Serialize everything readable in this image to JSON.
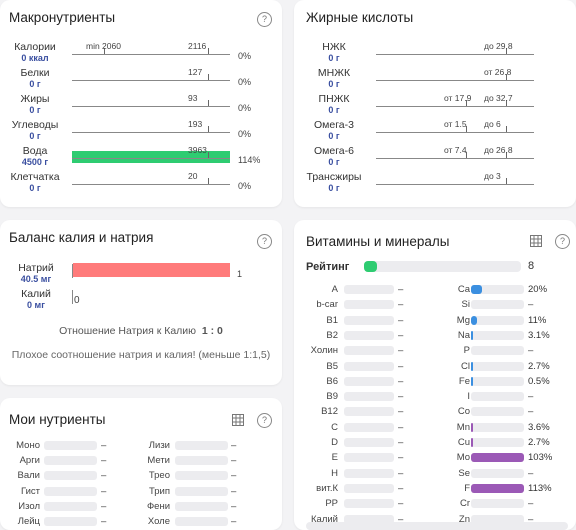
{
  "macro": {
    "title": "Макронутриенты",
    "min_label": "min 2060",
    "rows": [
      {
        "name": "Калории",
        "amount": "0 ккал",
        "target": "2116",
        "pct": "0%",
        "fill": 0
      },
      {
        "name": "Белки",
        "amount": "0 г",
        "target": "127",
        "pct": "0%",
        "fill": 0
      },
      {
        "name": "Жиры",
        "amount": "0 г",
        "target": "93",
        "pct": "0%",
        "fill": 0
      },
      {
        "name": "Углеводы",
        "amount": "0 г",
        "target": "193",
        "pct": "0%",
        "fill": 0
      },
      {
        "name": "Вода",
        "amount": "4500 г",
        "target": "3963",
        "pct": "114%",
        "fill": 1.14
      },
      {
        "name": "Клетчатка",
        "amount": "0 г",
        "target": "20",
        "pct": "0%",
        "fill": 0
      }
    ],
    "fill_color": "#2ecc71"
  },
  "fat": {
    "title": "Жирные кислоты",
    "rows": [
      {
        "name": "НЖК",
        "amount": "0 г",
        "from": "",
        "to": "до 29.8"
      },
      {
        "name": "МНЖК",
        "amount": "0 г",
        "from": "",
        "to": "от 26.8"
      },
      {
        "name": "ПНЖК",
        "amount": "0 г",
        "from": "от 17.9",
        "to": "до 32.7"
      },
      {
        "name": "Омега-3",
        "amount": "0 г",
        "from": "от 1.5",
        "to": "до 6"
      },
      {
        "name": "Омега-6",
        "amount": "0 г",
        "from": "от 7.4",
        "to": "до 26.8"
      },
      {
        "name": "Трансжиры",
        "amount": "0 г",
        "from": "",
        "to": "до 3"
      }
    ]
  },
  "balance": {
    "title": "Баланс калия и натрия",
    "rows": [
      {
        "name": "Натрий",
        "amount": "40.5 мг",
        "value": "1",
        "fill": 1
      },
      {
        "name": "Калий",
        "amount": "0 мг",
        "value": "0",
        "fill": 0
      }
    ],
    "fill_color": "#ff7b7b",
    "ratio_label": "Отношение Натрия к Калию",
    "ratio_value": "1 : 0",
    "warning": "Плохое соотношение натрия и калия! (меньше 1:1,5)"
  },
  "vitamins": {
    "title": "Витамины и минералы",
    "rating_label": "Рейтинг",
    "rating_value": "8",
    "rating_fill": 0.08,
    "rating_color": "#2ecc71",
    "left": [
      {
        "name": "A",
        "value": "–",
        "fill": 0,
        "color": ""
      },
      {
        "name": "b-car",
        "value": "–",
        "fill": 0,
        "color": ""
      },
      {
        "name": "B1",
        "value": "–",
        "fill": 0,
        "color": ""
      },
      {
        "name": "B2",
        "value": "–",
        "fill": 0,
        "color": ""
      },
      {
        "name": "Холин",
        "value": "–",
        "fill": 0,
        "color": ""
      },
      {
        "name": "B5",
        "value": "–",
        "fill": 0,
        "color": ""
      },
      {
        "name": "B6",
        "value": "–",
        "fill": 0,
        "color": ""
      },
      {
        "name": "B9",
        "value": "–",
        "fill": 0,
        "color": ""
      },
      {
        "name": "B12",
        "value": "–",
        "fill": 0,
        "color": ""
      },
      {
        "name": "C",
        "value": "–",
        "fill": 0,
        "color": ""
      },
      {
        "name": "D",
        "value": "–",
        "fill": 0,
        "color": ""
      },
      {
        "name": "E",
        "value": "–",
        "fill": 0,
        "color": ""
      },
      {
        "name": "H",
        "value": "–",
        "fill": 0,
        "color": ""
      },
      {
        "name": "вит.К",
        "value": "–",
        "fill": 0,
        "color": ""
      },
      {
        "name": "PP",
        "value": "–",
        "fill": 0,
        "color": ""
      },
      {
        "name": "Калий",
        "value": "–",
        "fill": 0,
        "color": ""
      }
    ],
    "right": [
      {
        "name": "Ca",
        "value": "20%",
        "fill": 0.2,
        "color": "#3b8fe0"
      },
      {
        "name": "Si",
        "value": "–",
        "fill": 0,
        "color": ""
      },
      {
        "name": "Mg",
        "value": "11%",
        "fill": 0.11,
        "color": "#3b8fe0"
      },
      {
        "name": "Na",
        "value": "3.1%",
        "fill": 0.031,
        "color": "#3b8fe0"
      },
      {
        "name": "P",
        "value": "–",
        "fill": 0,
        "color": ""
      },
      {
        "name": "Cl",
        "value": "2.7%",
        "fill": 0.027,
        "color": "#3b8fe0"
      },
      {
        "name": "Fe",
        "value": "0.5%",
        "fill": 0.005,
        "color": "#3b8fe0"
      },
      {
        "name": "I",
        "value": "–",
        "fill": 0,
        "color": ""
      },
      {
        "name": "Co",
        "value": "–",
        "fill": 0,
        "color": ""
      },
      {
        "name": "Mn",
        "value": "3.6%",
        "fill": 0.036,
        "color": "#9b59b6"
      },
      {
        "name": "Cu",
        "value": "2.7%",
        "fill": 0.027,
        "color": "#9b59b6"
      },
      {
        "name": "Mo",
        "value": "103%",
        "fill": 1.03,
        "color": "#9b59b6"
      },
      {
        "name": "Se",
        "value": "–",
        "fill": 0,
        "color": ""
      },
      {
        "name": "F",
        "value": "113%",
        "fill": 1.13,
        "color": "#9b59b6"
      },
      {
        "name": "Cr",
        "value": "–",
        "fill": 0,
        "color": ""
      },
      {
        "name": "Zn",
        "value": "–",
        "fill": 0,
        "color": ""
      }
    ]
  },
  "my": {
    "title": "Мои нутриенты",
    "left": [
      {
        "name": "Моно",
        "value": "–"
      },
      {
        "name": "Арги",
        "value": "–"
      },
      {
        "name": "Вали",
        "value": "–"
      },
      {
        "name": "Гист",
        "value": "–"
      },
      {
        "name": "Изол",
        "value": "–"
      },
      {
        "name": "Лейц",
        "value": "–"
      }
    ],
    "right": [
      {
        "name": "Лизи",
        "value": "–"
      },
      {
        "name": "Мети",
        "value": "–"
      },
      {
        "name": "Трео",
        "value": "–"
      },
      {
        "name": "Трип",
        "value": "–"
      },
      {
        "name": "Фени",
        "value": "–"
      },
      {
        "name": "Холе",
        "value": "–"
      }
    ]
  },
  "icons": {
    "help": "help-circle-icon",
    "grid": "table-grid-icon"
  }
}
